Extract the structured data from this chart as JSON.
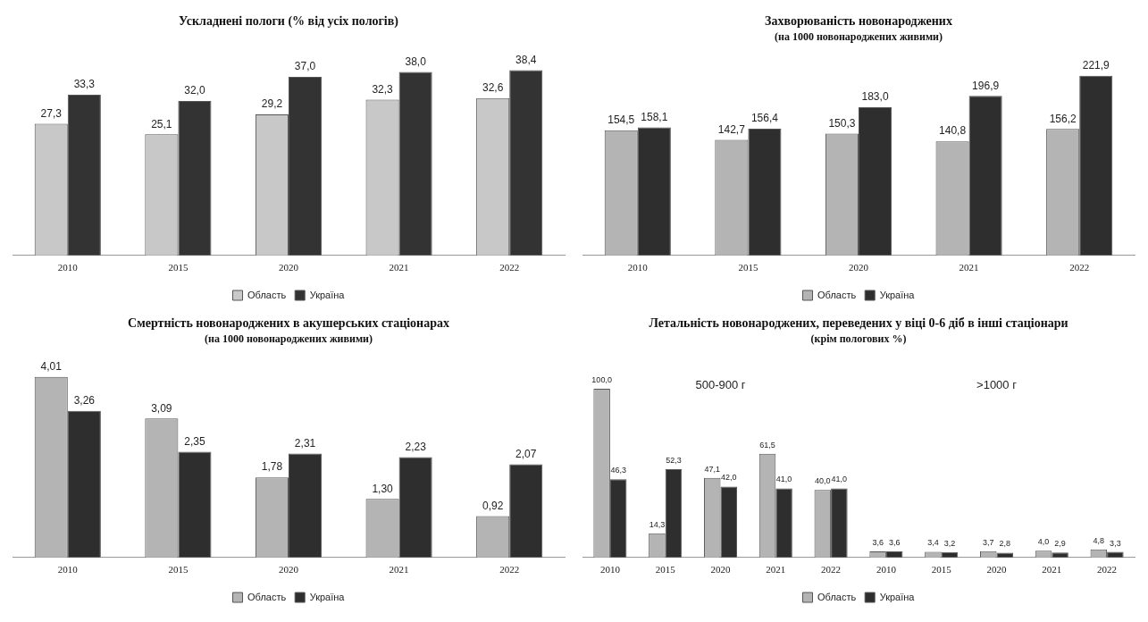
{
  "chart_data": [
    {
      "type": "bar",
      "title": "Ускладнені пологи (% від усіх пологів)",
      "categories": [
        "2010",
        "2015",
        "2020",
        "2021",
        "2022"
      ],
      "series": [
        {
          "name": "Область",
          "color": "#c8c8c8",
          "values": [
            27.3,
            25.1,
            29.2,
            32.3,
            32.6
          ],
          "value_labels": [
            "27,3",
            "25,1",
            "29,2",
            "32,3",
            "32,6"
          ]
        },
        {
          "name": "Україна",
          "color": "#333333",
          "values": [
            33.3,
            32.0,
            37.0,
            38.0,
            38.4
          ],
          "value_labels": [
            "33,3",
            "32,0",
            "37,0",
            "38,0",
            "38,4"
          ]
        }
      ],
      "legend": "bottom",
      "grid": false
    },
    {
      "type": "bar",
      "title": "Захворюваність новонароджених",
      "subtitle": "(на 1000 новонароджених живими)",
      "categories": [
        "2010",
        "2015",
        "2020",
        "2021",
        "2022"
      ],
      "series": [
        {
          "name": "Область",
          "color": "#b4b4b4",
          "values": [
            154.5,
            142.7,
            150.3,
            140.8,
            156.2
          ],
          "value_labels": [
            "154,5",
            "142,7",
            "150,3",
            "140,8",
            "156,2"
          ]
        },
        {
          "name": "Україна",
          "color": "#2e2e2e",
          "values": [
            158.1,
            156.4,
            183.0,
            196.9,
            221.9
          ],
          "value_labels": [
            "158,1",
            "156,4",
            "183,0",
            "196,9",
            "221,9"
          ]
        }
      ],
      "legend": "bottom",
      "grid": false
    },
    {
      "type": "bar",
      "title": "Смертність новонароджених в акушерських стаціонарах",
      "subtitle": "(на 1000 новонароджених живими)",
      "categories": [
        "2010",
        "2015",
        "2020",
        "2021",
        "2022"
      ],
      "series": [
        {
          "name": "Область",
          "color": "#b4b4b4",
          "values": [
            4.01,
            3.09,
            1.78,
            1.3,
            0.92
          ],
          "value_labels": [
            "4,01",
            "3,09",
            "1,78",
            "1,30",
            "0,92"
          ]
        },
        {
          "name": "Україна",
          "color": "#2e2e2e",
          "values": [
            3.26,
            2.35,
            2.31,
            2.23,
            2.07
          ],
          "value_labels": [
            "3,26",
            "2,35",
            "2,31",
            "2,23",
            "2,07"
          ]
        }
      ],
      "legend": "bottom",
      "grid": false
    },
    {
      "type": "bar",
      "title": "Летальність новонароджених, переведених у віці 0-6 діб в інші стаціонари",
      "subtitle": "(крім пологових %)",
      "categories": [
        "2010",
        "2015",
        "2020",
        "2021",
        "2022",
        "2010",
        "2015",
        "2020",
        "2021",
        "2022"
      ],
      "series": [
        {
          "name": "Область",
          "color": "#b4b4b4",
          "values": [
            100.0,
            14.3,
            47.1,
            61.5,
            40.0,
            3.6,
            3.4,
            3.7,
            4.0,
            4.8
          ],
          "value_labels": [
            "100,0",
            "14,3",
            "47,1",
            "61,5",
            "40,0",
            "3,6",
            "3,4",
            "3,7",
            "4,0",
            "4,8"
          ]
        },
        {
          "name": "Україна",
          "color": "#2e2e2e",
          "values": [
            46.3,
            52.3,
            42.0,
            41.0,
            41.0,
            3.6,
            3.2,
            2.8,
            2.9,
            3.3
          ],
          "value_labels": [
            "46,3",
            "52,3",
            "42,0",
            "41,0",
            "41,0",
            "3,6",
            "3,2",
            "2,8",
            "2,9",
            "3,3"
          ]
        }
      ],
      "annotations": [
        "500-900 г",
        ">1000 г"
      ],
      "legend": "bottom",
      "grid": false
    }
  ]
}
